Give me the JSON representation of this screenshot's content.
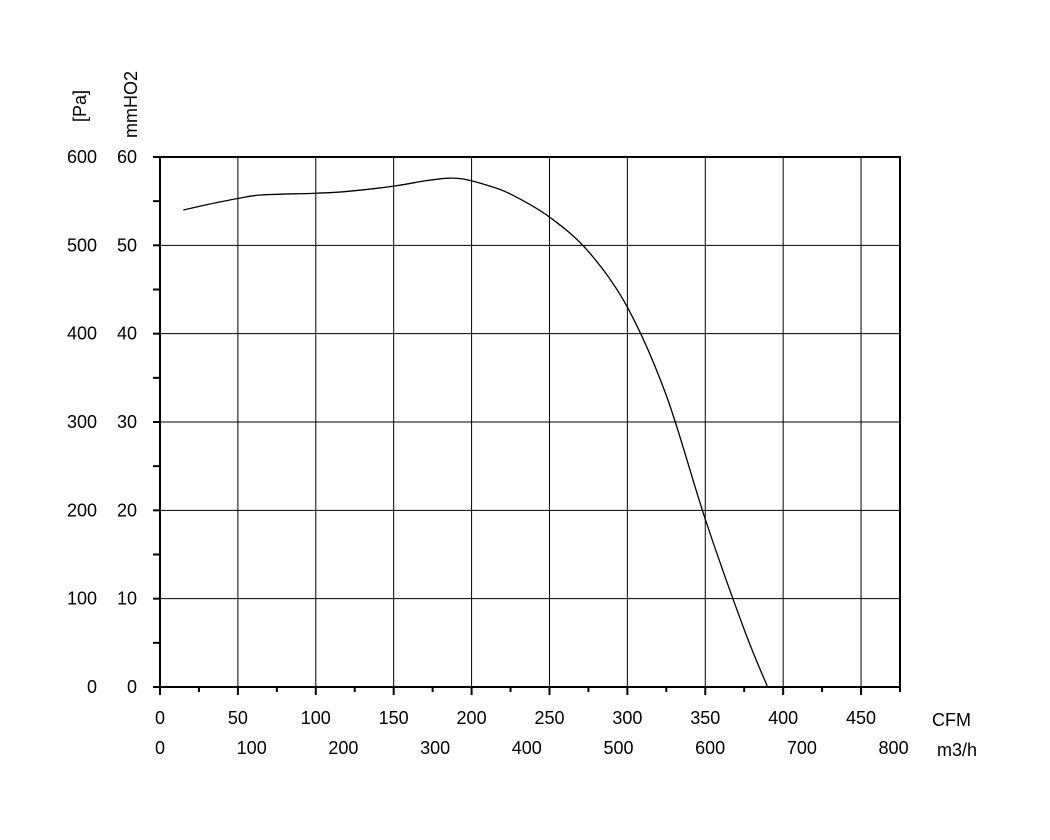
{
  "chart_data": {
    "type": "line",
    "axes": {
      "y_left_outer": {
        "label": "[Pa]",
        "ticks": [
          "0",
          "100",
          "200",
          "300",
          "400",
          "500",
          "600"
        ],
        "range": [
          0,
          600
        ]
      },
      "y_left_inner": {
        "label": "mmHO2",
        "ticks": [
          "0",
          "10",
          "20",
          "30",
          "40",
          "50",
          "60"
        ],
        "range": [
          0,
          60
        ]
      },
      "x_primary": {
        "label": "CFM",
        "ticks": [
          "0",
          "50",
          "100",
          "150",
          "200",
          "250",
          "300",
          "350",
          "400",
          "450"
        ],
        "range": [
          0,
          475
        ]
      },
      "x_secondary": {
        "label": "m3/h",
        "ticks": [
          "0",
          "100",
          "200",
          "300",
          "400",
          "500",
          "600",
          "700",
          "800"
        ],
        "range": [
          0,
          807
        ]
      }
    },
    "grid": true,
    "series": [
      {
        "x_cfm": [
          15,
          30,
          50,
          65,
          100,
          120,
          150,
          170,
          185,
          195,
          210,
          225,
          250,
          275,
          300,
          325,
          350,
          375,
          390
        ],
        "y_pa": [
          540,
          546,
          553,
          557,
          559,
          561,
          567,
          573,
          576,
          575,
          568,
          558,
          532,
          493,
          430,
          330,
          190,
          65,
          0
        ]
      }
    ]
  }
}
